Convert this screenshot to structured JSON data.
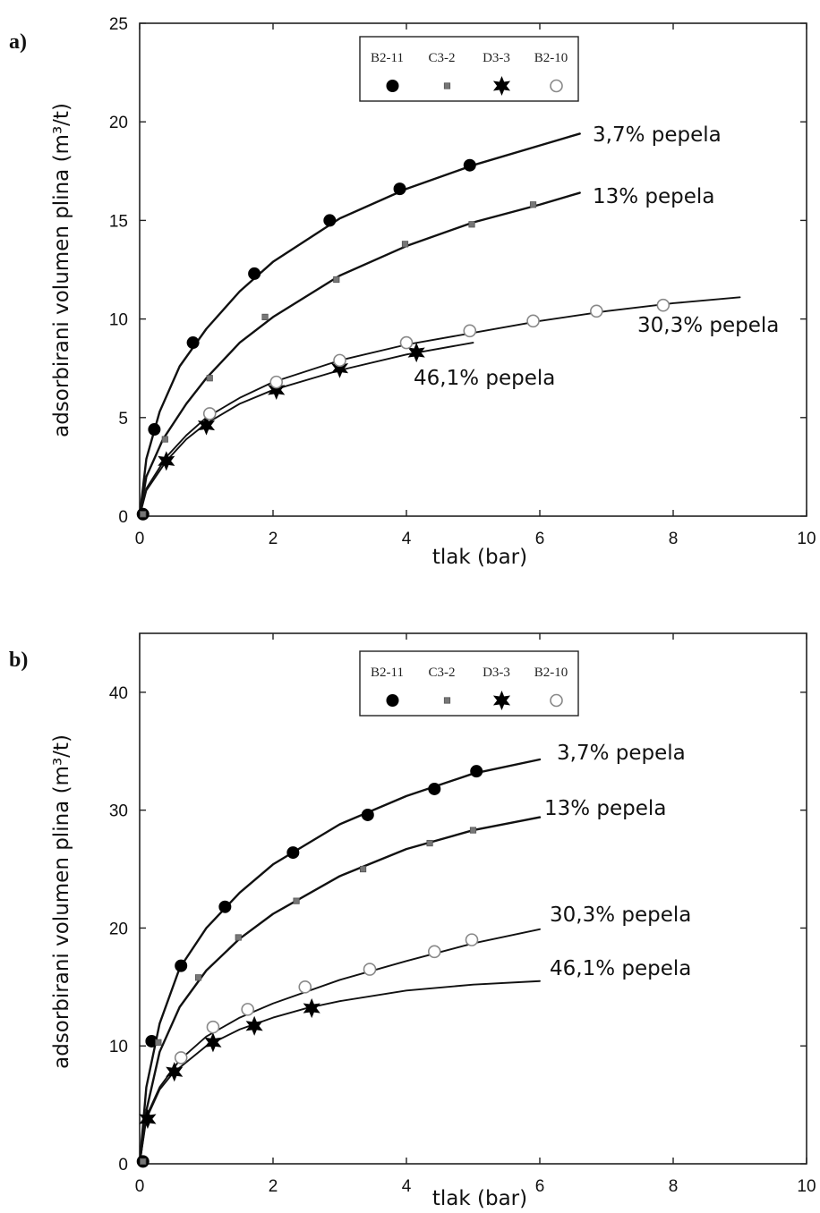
{
  "chart_data": [
    {
      "type": "scatter",
      "panel_label": "a)",
      "xlabel": "tlak (bar)",
      "ylabel": "adsorbirani volumen plina (m³/t)",
      "xlim": [
        0,
        10
      ],
      "ylim": [
        0,
        25
      ],
      "xticks": [
        "0",
        "2",
        "4",
        "6",
        "8",
        "10"
      ],
      "yticks": [
        "0",
        "5",
        "10",
        "15",
        "20",
        "25"
      ],
      "legend": {
        "placement": "top-center",
        "entries": [
          "B2-11",
          "C3-2",
          "D3-3",
          "B2-10"
        ]
      },
      "series": [
        {
          "name": "B2-11",
          "marker": "filled-circle",
          "label": "3,7% pepela",
          "points": [
            [
              0.05,
              0.1
            ],
            [
              0.22,
              4.4
            ],
            [
              0.8,
              8.8
            ],
            [
              1.72,
              12.3
            ],
            [
              2.85,
              15.0
            ],
            [
              3.9,
              16.6
            ],
            [
              4.95,
              17.8
            ]
          ],
          "curve": [
            [
              0,
              0
            ],
            [
              0.1,
              2.9
            ],
            [
              0.3,
              5.3
            ],
            [
              0.6,
              7.6
            ],
            [
              1.0,
              9.5
            ],
            [
              1.5,
              11.4
            ],
            [
              2.0,
              12.9
            ],
            [
              3.0,
              15.1
            ],
            [
              4.0,
              16.6
            ],
            [
              5.0,
              17.8
            ],
            [
              6.0,
              18.8
            ],
            [
              6.6,
              19.4
            ]
          ]
        },
        {
          "name": "C3-2",
          "marker": "small-square",
          "label": "13% pepela",
          "points": [
            [
              0.05,
              0.1
            ],
            [
              0.38,
              3.9
            ],
            [
              1.05,
              7.0
            ],
            [
              1.88,
              10.1
            ],
            [
              2.95,
              12.0
            ],
            [
              3.98,
              13.8
            ],
            [
              4.98,
              14.8
            ],
            [
              5.9,
              15.8
            ]
          ],
          "curve": [
            [
              0,
              0
            ],
            [
              0.1,
              2.0
            ],
            [
              0.35,
              3.9
            ],
            [
              0.7,
              5.7
            ],
            [
              1.0,
              7.0
            ],
            [
              1.5,
              8.8
            ],
            [
              2.0,
              10.1
            ],
            [
              3.0,
              12.2
            ],
            [
              4.0,
              13.7
            ],
            [
              5.0,
              14.9
            ],
            [
              6.0,
              15.8
            ],
            [
              6.6,
              16.4
            ]
          ]
        },
        {
          "name": "D3-3",
          "marker": "star",
          "label": "46,1% pepela",
          "points": [
            [
              0.4,
              2.8
            ],
            [
              1.0,
              4.6
            ],
            [
              2.05,
              6.4
            ],
            [
              3.0,
              7.5
            ],
            [
              4.15,
              8.3
            ]
          ],
          "curve": [
            [
              0,
              0
            ],
            [
              0.1,
              1.3
            ],
            [
              0.4,
              2.8
            ],
            [
              0.7,
              3.9
            ],
            [
              1.0,
              4.7
            ],
            [
              1.5,
              5.7
            ],
            [
              2.0,
              6.4
            ],
            [
              3.0,
              7.4
            ],
            [
              4.0,
              8.2
            ],
            [
              5.0,
              8.8
            ]
          ]
        },
        {
          "name": "B2-10",
          "marker": "open-circle",
          "label": "30,3% pepela",
          "points": [
            [
              1.05,
              5.2
            ],
            [
              2.05,
              6.8
            ],
            [
              3.0,
              7.9
            ],
            [
              4.0,
              8.8
            ],
            [
              4.95,
              9.4
            ],
            [
              5.9,
              9.9
            ],
            [
              6.85,
              10.4
            ],
            [
              7.85,
              10.7
            ]
          ],
          "curve": [
            [
              0,
              0
            ],
            [
              0.1,
              1.4
            ],
            [
              0.4,
              3.0
            ],
            [
              0.7,
              4.1
            ],
            [
              1.0,
              5.0
            ],
            [
              1.5,
              6.0
            ],
            [
              2.0,
              6.8
            ],
            [
              3.0,
              7.9
            ],
            [
              4.0,
              8.7
            ],
            [
              5.0,
              9.3
            ],
            [
              6.0,
              9.9
            ],
            [
              7.0,
              10.4
            ],
            [
              8.0,
              10.8
            ],
            [
              9.0,
              11.1
            ]
          ]
        }
      ]
    },
    {
      "type": "scatter",
      "panel_label": "b)",
      "xlabel": "tlak (bar)",
      "ylabel": "adsorbirani volumen plina (m³/t)",
      "xlim": [
        0,
        10
      ],
      "ylim": [
        0,
        45
      ],
      "xticks": [
        "0",
        "2",
        "4",
        "6",
        "8",
        "10"
      ],
      "yticks": [
        "0",
        "10",
        "20",
        "30",
        "40"
      ],
      "legend": {
        "placement": "top-center",
        "entries": [
          "B2-11",
          "C3-2",
          "D3-3",
          "B2-10"
        ]
      },
      "series": [
        {
          "name": "B2-11",
          "marker": "filled-circle",
          "label": "3,7% pepela",
          "points": [
            [
              0.05,
              0.2
            ],
            [
              0.18,
              10.4
            ],
            [
              0.62,
              16.8
            ],
            [
              1.28,
              21.8
            ],
            [
              2.3,
              26.4
            ],
            [
              3.42,
              29.6
            ],
            [
              4.42,
              31.8
            ],
            [
              5.05,
              33.3
            ]
          ],
          "curve": [
            [
              0,
              0
            ],
            [
              0.1,
              6.5
            ],
            [
              0.3,
              11.9
            ],
            [
              0.6,
              16.6
            ],
            [
              1.0,
              20.0
            ],
            [
              1.5,
              23.0
            ],
            [
              2.0,
              25.4
            ],
            [
              3.0,
              28.8
            ],
            [
              4.0,
              31.2
            ],
            [
              5.0,
              33.1
            ],
            [
              6.0,
              34.3
            ]
          ]
        },
        {
          "name": "C3-2",
          "marker": "small-square",
          "label": "13% pepela",
          "points": [
            [
              0.05,
              0.2
            ],
            [
              0.28,
              10.3
            ],
            [
              0.88,
              15.8
            ],
            [
              1.48,
              19.2
            ],
            [
              2.35,
              22.3
            ],
            [
              3.35,
              25.0
            ],
            [
              4.35,
              27.2
            ],
            [
              5.0,
              28.3
            ]
          ],
          "curve": [
            [
              0,
              0
            ],
            [
              0.1,
              4.5
            ],
            [
              0.3,
              9.5
            ],
            [
              0.6,
              13.3
            ],
            [
              1.0,
              16.4
            ],
            [
              1.5,
              19.1
            ],
            [
              2.0,
              21.2
            ],
            [
              3.0,
              24.4
            ],
            [
              4.0,
              26.7
            ],
            [
              5.0,
              28.3
            ],
            [
              6.0,
              29.4
            ]
          ]
        },
        {
          "name": "D3-3",
          "marker": "star",
          "label": "46,1% pepela",
          "points": [
            [
              0.12,
              3.8
            ],
            [
              0.52,
              7.8
            ],
            [
              1.1,
              10.3
            ],
            [
              1.72,
              11.7
            ],
            [
              2.58,
              13.2
            ]
          ],
          "curve": [
            [
              0,
              0
            ],
            [
              0.1,
              3.8
            ],
            [
              0.3,
              6.3
            ],
            [
              0.5,
              7.7
            ],
            [
              1.0,
              10.0
            ],
            [
              1.5,
              11.4
            ],
            [
              2.0,
              12.4
            ],
            [
              2.5,
              13.2
            ],
            [
              3.0,
              13.8
            ],
            [
              4.0,
              14.7
            ],
            [
              5.0,
              15.2
            ],
            [
              6.0,
              15.5
            ]
          ]
        },
        {
          "name": "B2-10",
          "marker": "open-circle",
          "label": "30,3% pepela",
          "points": [
            [
              0.62,
              9.0
            ],
            [
              1.1,
              11.6
            ],
            [
              1.62,
              13.1
            ],
            [
              2.48,
              15.0
            ],
            [
              3.45,
              16.5
            ],
            [
              4.42,
              18.0
            ],
            [
              4.98,
              19.0
            ]
          ],
          "curve": [
            [
              0,
              0
            ],
            [
              0.1,
              4.0
            ],
            [
              0.3,
              6.5
            ],
            [
              0.6,
              8.8
            ],
            [
              1.0,
              10.8
            ],
            [
              1.5,
              12.4
            ],
            [
              2.0,
              13.6
            ],
            [
              3.0,
              15.6
            ],
            [
              4.0,
              17.2
            ],
            [
              5.0,
              18.7
            ],
            [
              6.0,
              19.9
            ]
          ]
        }
      ]
    }
  ]
}
